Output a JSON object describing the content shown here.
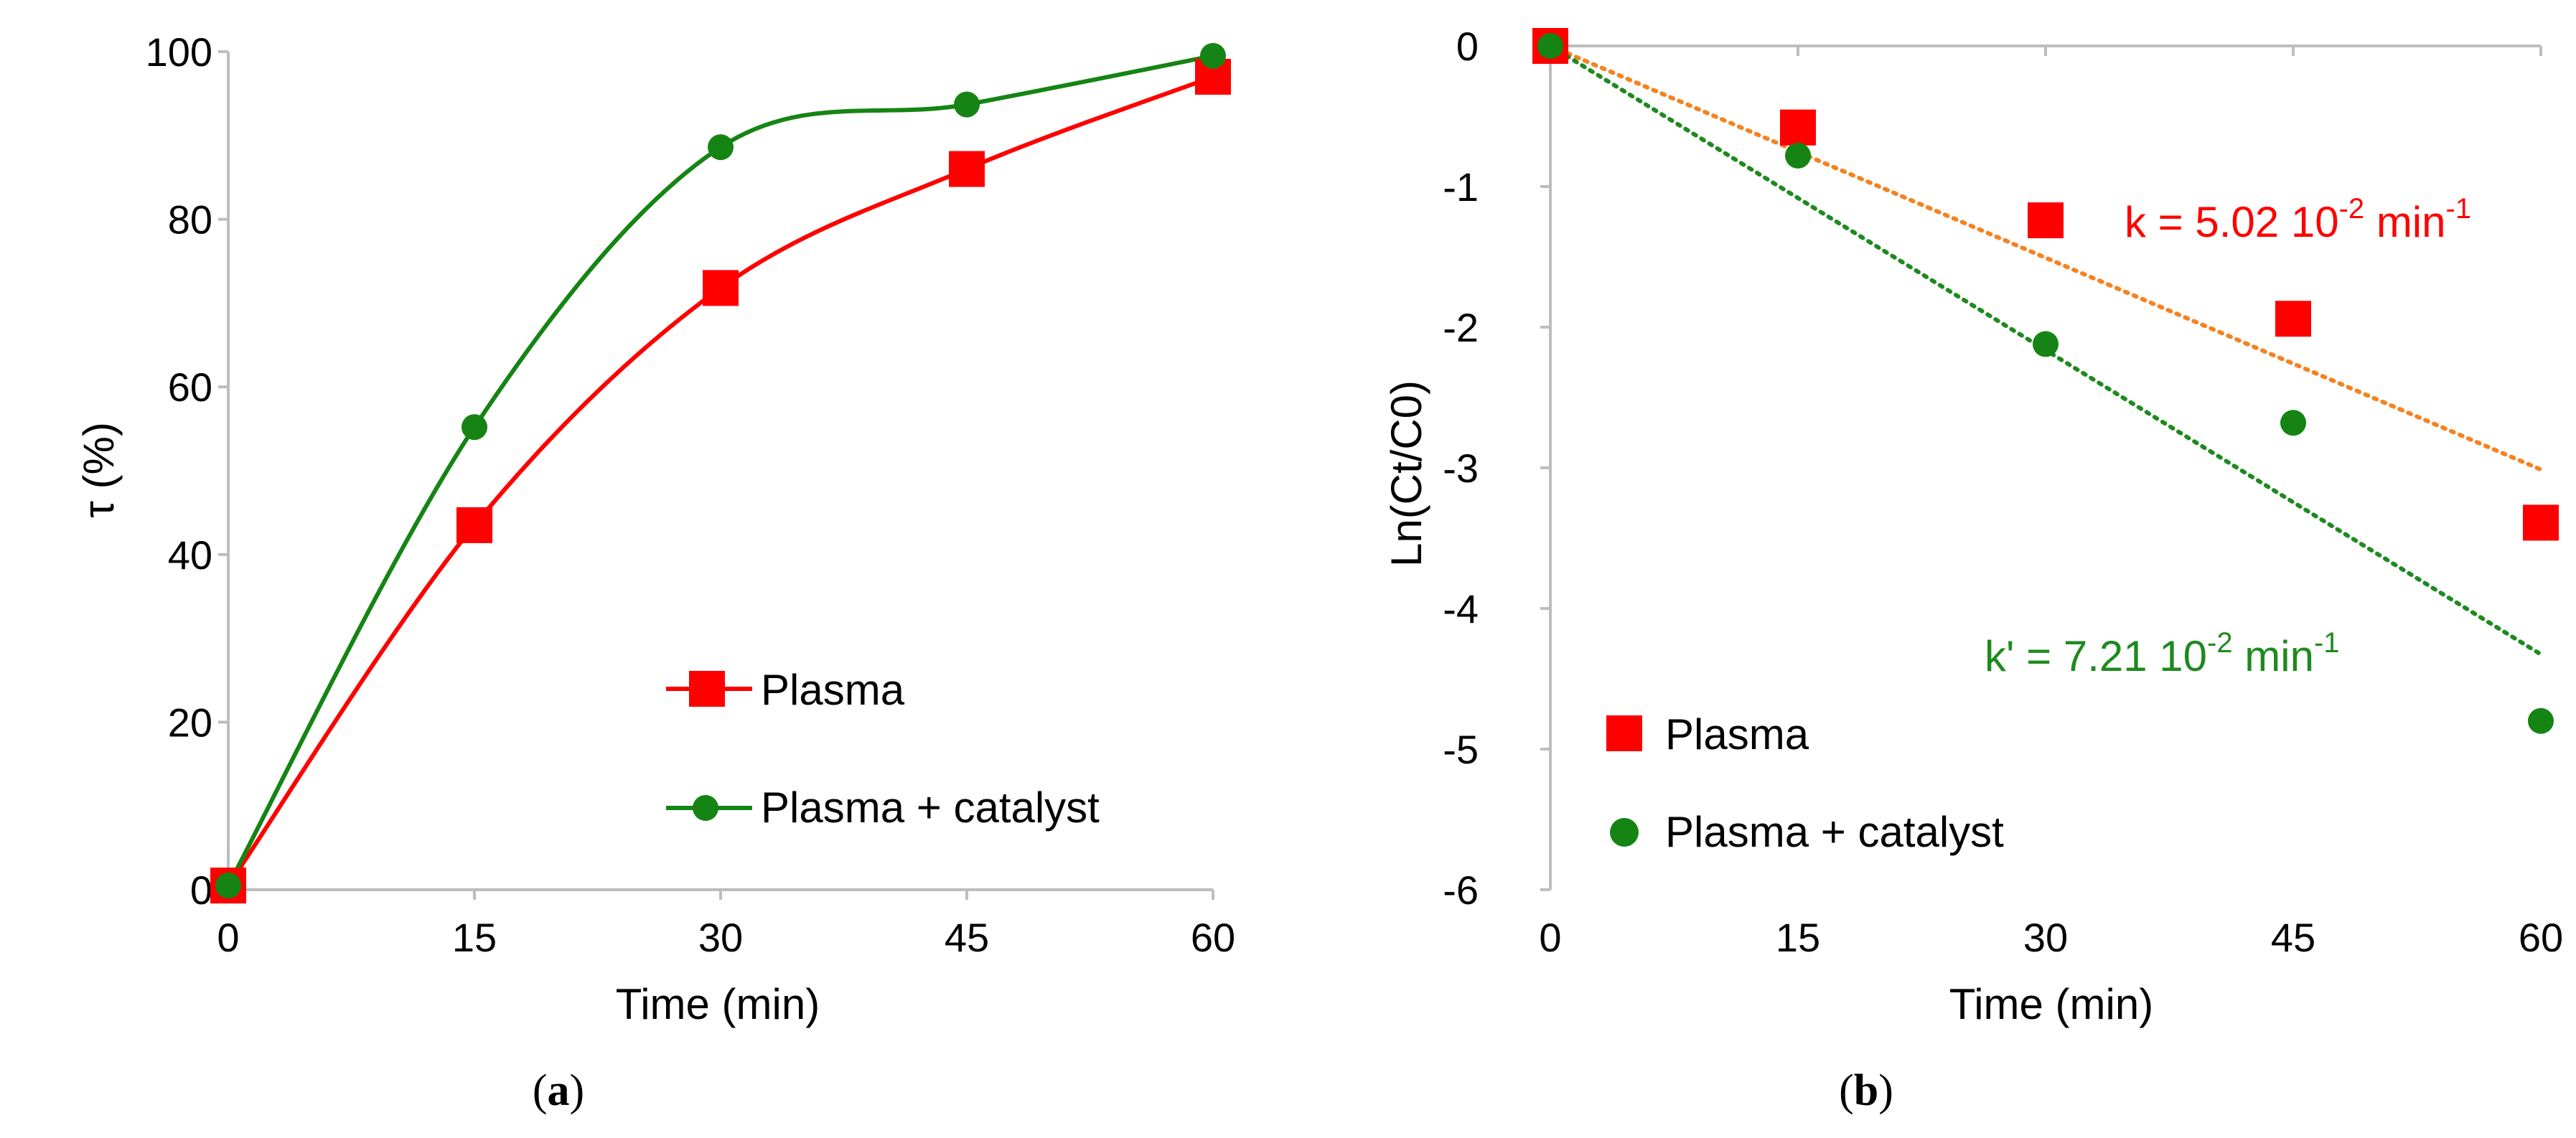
{
  "colors": {
    "plasma": "#ff0000",
    "catalyst": "#158414",
    "plasma_fit": "#f58220",
    "catalyst_fit": "#1e8a1e",
    "axis": "#bdbdbd",
    "text": "#000000"
  },
  "chart_data": [
    {
      "type": "line",
      "panel_label_open": "(",
      "panel_label_letter": "a",
      "panel_label_close": ")",
      "xlabel": "Time (min)",
      "ylabel": "τ (%)",
      "xlim": [
        0,
        60
      ],
      "ylim": [
        0,
        100
      ],
      "xticks": [
        "0",
        "15",
        "30",
        "45",
        "60"
      ],
      "yticks": [
        "0",
        "20",
        "40",
        "60",
        "80",
        "100"
      ],
      "x": [
        0,
        15,
        30,
        45,
        60
      ],
      "series": [
        {
          "name": "Plasma",
          "marker": "square",
          "smooth": true,
          "values": [
            0.5,
            43.5,
            71.8,
            86,
            97
          ]
        },
        {
          "name": "Plasma + catalyst",
          "marker": "circle",
          "smooth": true,
          "values": [
            0.5,
            55.2,
            88.6,
            93.7,
            99.5
          ]
        }
      ],
      "legend": {
        "position": "lower-right",
        "items": [
          "Plasma",
          "Plasma + catalyst"
        ]
      }
    },
    {
      "type": "scatter",
      "panel_label_open": "(",
      "panel_label_letter": "b",
      "panel_label_close": ")",
      "xlabel": "Time (min)",
      "ylabel": "Ln(Ct/C0)",
      "xlim": [
        0,
        60
      ],
      "ylim": [
        -6,
        0
      ],
      "xticks": [
        "0",
        "15",
        "30",
        "45",
        "60"
      ],
      "yticks": [
        "0",
        "-1",
        "-2",
        "-3",
        "-4",
        "-5",
        "-6"
      ],
      "x": [
        0,
        15,
        30,
        45,
        60
      ],
      "series": [
        {
          "name": "Plasma",
          "marker": "square",
          "values": [
            0,
            -0.58,
            -1.24,
            -1.94,
            -3.39
          ]
        },
        {
          "name": "Plasma + catalyst",
          "marker": "circle",
          "values": [
            0,
            -0.78,
            -2.12,
            -2.68,
            -4.8
          ]
        }
      ],
      "trendlines": [
        {
          "series": "Plasma",
          "x": [
            0,
            60
          ],
          "y": [
            0,
            -3.012
          ]
        },
        {
          "series": "Plasma + catalyst",
          "x": [
            0,
            60
          ],
          "y": [
            0,
            -4.326
          ]
        }
      ],
      "annotations": [
        {
          "series": "Plasma",
          "prefix": "k = 5.02 10",
          "sup": "-2",
          "mid": " min",
          "sup2": "-1"
        },
        {
          "series": "Plasma + catalyst",
          "prefix": "k' = 7.21 10",
          "sup": "-2",
          "mid": " min",
          "sup2": "-1"
        }
      ],
      "legend": {
        "position": "lower-left",
        "items": [
          "Plasma",
          "Plasma + catalyst"
        ]
      }
    }
  ]
}
